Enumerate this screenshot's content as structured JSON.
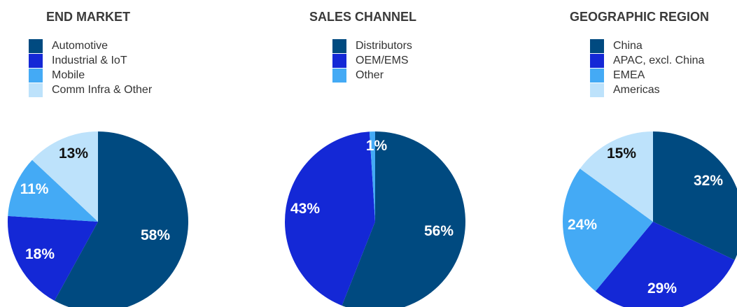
{
  "chart_data": [
    {
      "type": "pie",
      "title": "END MARKET",
      "start": "12 o'clock",
      "direction": "clockwise",
      "slices": [
        {
          "label": "Automotive",
          "value": 58,
          "value_label": "58%",
          "color": "#004a80",
          "label_color": "#ffffff"
        },
        {
          "label": "Industrial & IoT",
          "value": 18,
          "value_label": "18%",
          "color": "#1428d6",
          "label_color": "#ffffff"
        },
        {
          "label": "Mobile",
          "value": 11,
          "value_label": "11%",
          "color": "#44aaf5",
          "label_color": "#ffffff"
        },
        {
          "label": "Comm Infra & Other",
          "value": 13,
          "value_label": "13%",
          "color": "#bde2fb",
          "label_color": "#111111"
        }
      ]
    },
    {
      "type": "pie",
      "title": "SALES CHANNEL",
      "start": "12 o'clock",
      "direction": "clockwise",
      "slices": [
        {
          "label": "Distributors",
          "value": 56,
          "value_label": "56%",
          "color": "#004a80",
          "label_color": "#ffffff"
        },
        {
          "label": "OEM/EMS",
          "value": 43,
          "value_label": "43%",
          "color": "#1428d6",
          "label_color": "#ffffff"
        },
        {
          "label": "Other",
          "value": 1,
          "value_label": "1%",
          "color": "#44aaf5",
          "label_color": "#ffffff"
        }
      ]
    },
    {
      "type": "pie",
      "title": "GEOGRAPHIC REGION",
      "start": "12 o'clock",
      "direction": "clockwise",
      "slices": [
        {
          "label": "China",
          "value": 32,
          "value_label": "32%",
          "color": "#004a80",
          "label_color": "#ffffff"
        },
        {
          "label": "APAC, excl. China",
          "value": 29,
          "value_label": "29%",
          "color": "#1428d6",
          "label_color": "#ffffff"
        },
        {
          "label": "EMEA",
          "value": 24,
          "value_label": "24%",
          "color": "#44aaf5",
          "label_color": "#ffffff"
        },
        {
          "label": "Americas",
          "value": 15,
          "value_label": "15%",
          "color": "#bde2fb",
          "label_color": "#111111"
        }
      ]
    }
  ]
}
